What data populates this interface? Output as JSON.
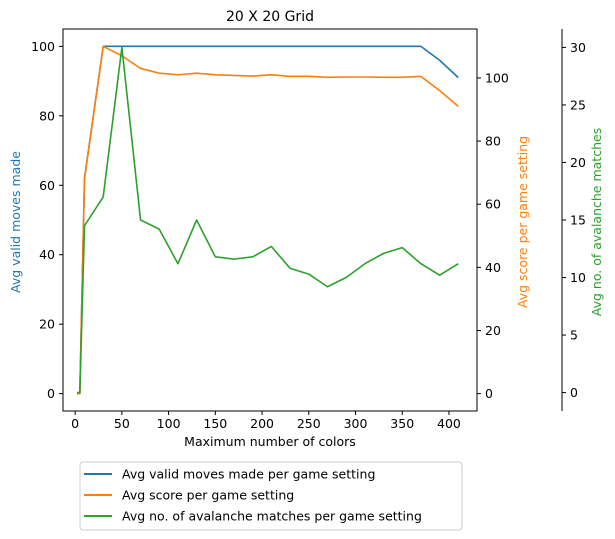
{
  "chart_data": {
    "type": "line",
    "title": "20 X 20 Grid",
    "xlabel": "Maximum number of colors",
    "x": [
      2,
      5,
      10,
      30,
      50,
      70,
      90,
      110,
      130,
      150,
      170,
      190,
      210,
      230,
      250,
      270,
      290,
      310,
      330,
      350,
      370,
      390,
      410
    ],
    "xlim": [
      -13,
      430
    ],
    "xticks": [
      0,
      50,
      100,
      150,
      200,
      250,
      300,
      350,
      400
    ],
    "axes": [
      {
        "id": "left",
        "ylabel": "Avg valid moves made",
        "color": "#1f77b4",
        "ylim": [
          -5,
          105
        ],
        "yticks": [
          0,
          20,
          40,
          60,
          80,
          100
        ]
      },
      {
        "id": "right1",
        "ylabel": "Avg score per game setting",
        "color": "#ff7f0e",
        "ylim": [
          -5.5,
          115.5
        ],
        "yticks": [
          0,
          20,
          40,
          60,
          80,
          100
        ]
      },
      {
        "id": "right2",
        "ylabel": "Avg no. of avalanche matches",
        "color": "#2ca02c",
        "ylim": [
          -1.6,
          31.6
        ],
        "yticks": [
          0,
          5,
          10,
          15,
          20,
          25,
          30
        ]
      }
    ],
    "series": [
      {
        "name": "Avg valid moves made per game setting",
        "axis": "left",
        "color": "#1f77b4",
        "values": [
          0,
          0,
          62,
          100,
          100,
          100,
          100,
          100,
          100,
          100,
          100,
          100,
          100,
          100,
          100,
          100,
          100,
          100,
          100,
          100,
          100,
          96,
          91
        ]
      },
      {
        "name": "Avg score per game setting",
        "axis": "right1",
        "color": "#ff7f0e",
        "values": [
          0,
          0,
          68,
          110,
          107,
          103,
          101.5,
          101,
          101.5,
          101,
          100.8,
          100.6,
          101,
          100.5,
          100.5,
          100.2,
          100.3,
          100.3,
          100.2,
          100.2,
          100.5,
          96,
          91
        ]
      },
      {
        "name": "Avg no. of avalanche matches per game setting",
        "axis": "right2",
        "color": "#2ca02c",
        "values": [
          0,
          0,
          14.5,
          17,
          30,
          15,
          14.2,
          11.2,
          15,
          11.8,
          11.6,
          11.8,
          12.7,
          10.8,
          10.3,
          9.2,
          10.0,
          11.2,
          12.1,
          12.6,
          11.2,
          10.2,
          11.2
        ]
      }
    ],
    "legend_position": "below-plot",
    "grid": false
  }
}
